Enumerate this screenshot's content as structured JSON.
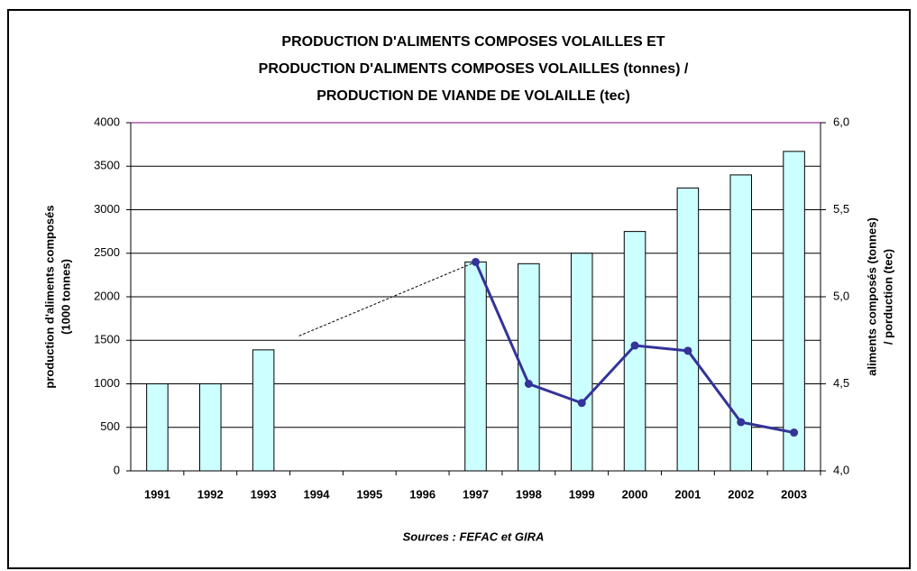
{
  "chart_data": {
    "type": "bar",
    "title": [
      "PRODUCTION D'ALIMENTS COMPOSES VOLAILLES ET",
      "PRODUCTION D'ALIMENTS COMPOSES VOLAILLES (tonnes) /",
      "PRODUCTION DE VIANDE DE VOLAILLE (tec)"
    ],
    "ylabel": [
      "production d'aliments composés",
      "(1000 tonnes)"
    ],
    "y2label": [
      "aliments composés (tonnes)",
      "/ porduction (tec)"
    ],
    "source": "Sources : FEFAC et GIRA",
    "categories": [
      "1991",
      "1992",
      "1993",
      "1994",
      "1995",
      "1996",
      "1997",
      "1998",
      "1999",
      "2000",
      "2001",
      "2002",
      "2003"
    ],
    "series": [
      {
        "type": "bar",
        "color": "#ccffff",
        "values": [
          1000,
          1000,
          1390,
          null,
          null,
          null,
          2400,
          2380,
          2500,
          2750,
          3250,
          3400,
          3670
        ]
      },
      {
        "type": "line",
        "axis": "y2",
        "color": "#333399",
        "values": [
          null,
          null,
          null,
          null,
          null,
          null,
          5.2,
          4.5,
          4.39,
          4.72,
          4.69,
          4.28,
          4.22
        ]
      }
    ],
    "ylim": [
      0,
      4000
    ],
    "yticks": [
      0,
      500,
      1000,
      1500,
      2000,
      2500,
      3000,
      3500,
      4000
    ],
    "y2lim": [
      4,
      6
    ],
    "y2ticks": [
      {
        "value": 4,
        "label": "4,0"
      },
      {
        "value": 4.5,
        "label": "4,5"
      },
      {
        "value": 5,
        "label": "5,0"
      },
      {
        "value": 5.5,
        "label": "5,5"
      },
      {
        "value": 6,
        "label": "6,0"
      }
    ],
    "grid": true
  }
}
